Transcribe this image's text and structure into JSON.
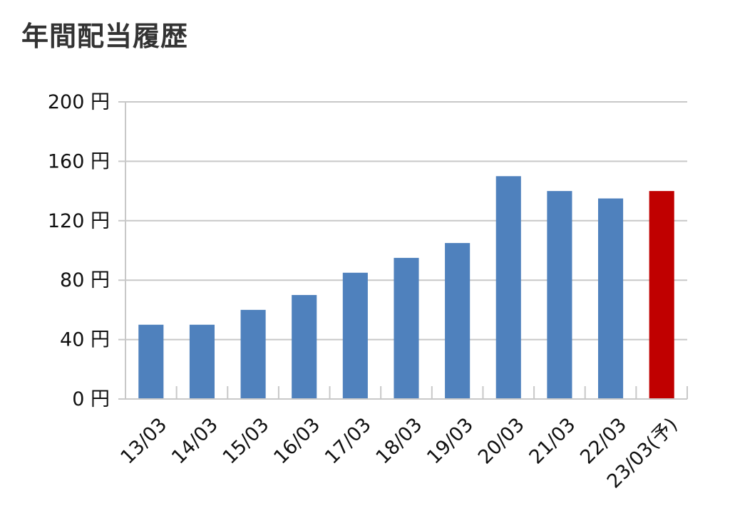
{
  "chart_data": {
    "type": "bar",
    "title": "年間配当履歴",
    "categories": [
      "13/03",
      "14/03",
      "15/03",
      "16/03",
      "17/03",
      "18/03",
      "19/03",
      "20/03",
      "21/03",
      "22/03",
      "23/03(予)"
    ],
    "values": [
      50,
      50,
      60,
      70,
      85,
      95,
      105,
      150,
      140,
      135,
      140
    ],
    "bar_colors": [
      "#4f81bd",
      "#4f81bd",
      "#4f81bd",
      "#4f81bd",
      "#4f81bd",
      "#4f81bd",
      "#4f81bd",
      "#4f81bd",
      "#4f81bd",
      "#4f81bd",
      "#c00000"
    ],
    "ylim": [
      0,
      200
    ],
    "y_ticks": [
      0,
      40,
      80,
      120,
      160,
      200
    ],
    "y_unit": "円",
    "grid": true,
    "legend": "none"
  }
}
